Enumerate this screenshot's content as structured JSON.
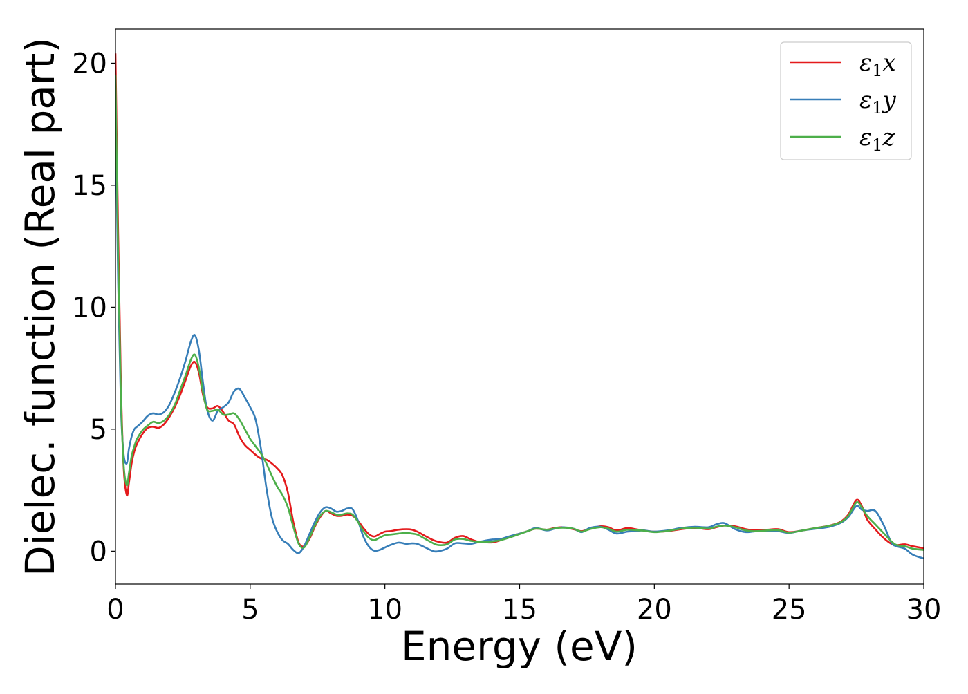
{
  "chart_data": {
    "type": "line",
    "title": "",
    "xlabel": "Energy (eV)",
    "ylabel": "Dielec. function (Real part)",
    "xlim": [
      0,
      30
    ],
    "ylim": [
      -1.35,
      21.4
    ],
    "xticks": [
      0,
      5,
      10,
      15,
      20,
      25,
      30
    ],
    "yticks": [
      0,
      5,
      10,
      15,
      20
    ],
    "grid": false,
    "legend_position": "top-right",
    "series": [
      {
        "name": "ε1x",
        "name_base": "ε",
        "name_sub": "1",
        "name_tail": "x",
        "color": "#e41a1c",
        "x": [
          0,
          0.1,
          0.2,
          0.3,
          0.42,
          0.5,
          0.6,
          0.7,
          0.8,
          1.0,
          1.2,
          1.4,
          1.6,
          1.8,
          2.0,
          2.2,
          2.4,
          2.6,
          2.8,
          2.95,
          3.1,
          3.25,
          3.4,
          3.6,
          3.8,
          4.0,
          4.2,
          4.4,
          4.6,
          4.8,
          5.0,
          5.2,
          5.4,
          5.6,
          5.8,
          6.0,
          6.2,
          6.4,
          6.6,
          6.8,
          7.0,
          7.2,
          7.4,
          7.6,
          7.8,
          8.0,
          8.2,
          8.4,
          8.6,
          8.8,
          9.0,
          9.2,
          9.4,
          9.6,
          9.8,
          10.0,
          10.2,
          10.5,
          10.8,
          11.0,
          11.2,
          11.5,
          11.8,
          12.0,
          12.3,
          12.6,
          12.9,
          13.2,
          13.5,
          13.8,
          14.0,
          14.3,
          14.6,
          15.0,
          15.3,
          15.6,
          16.0,
          16.3,
          16.6,
          17.0,
          17.3,
          17.6,
          18.0,
          18.3,
          18.6,
          19.0,
          19.3,
          19.6,
          20.0,
          20.5,
          21.0,
          21.5,
          22.0,
          22.3,
          22.6,
          23.0,
          23.4,
          23.8,
          24.2,
          24.6,
          25.0,
          25.5,
          26.0,
          26.5,
          26.9,
          27.2,
          27.5,
          27.7,
          27.9,
          28.2,
          28.5,
          28.8,
          29.0,
          29.3,
          29.6,
          30.0
        ],
        "y": [
          20.4,
          13.0,
          7.0,
          3.5,
          2.3,
          2.8,
          3.6,
          4.1,
          4.4,
          4.8,
          5.05,
          5.1,
          5.05,
          5.2,
          5.5,
          5.9,
          6.4,
          7.0,
          7.6,
          7.75,
          7.3,
          6.4,
          5.9,
          5.85,
          5.95,
          5.7,
          5.35,
          5.2,
          4.7,
          4.35,
          4.15,
          3.95,
          3.8,
          3.75,
          3.6,
          3.4,
          3.1,
          2.4,
          1.2,
          0.35,
          0.2,
          0.5,
          1.0,
          1.4,
          1.65,
          1.55,
          1.45,
          1.45,
          1.5,
          1.45,
          1.25,
          0.95,
          0.7,
          0.6,
          0.7,
          0.8,
          0.82,
          0.88,
          0.9,
          0.88,
          0.8,
          0.62,
          0.45,
          0.38,
          0.35,
          0.55,
          0.62,
          0.48,
          0.38,
          0.36,
          0.36,
          0.45,
          0.58,
          0.72,
          0.82,
          0.92,
          0.88,
          0.95,
          0.98,
          0.9,
          0.82,
          0.92,
          1.02,
          0.98,
          0.85,
          0.95,
          0.9,
          0.85,
          0.8,
          0.82,
          0.9,
          0.95,
          0.9,
          0.98,
          1.05,
          1.02,
          0.9,
          0.85,
          0.88,
          0.9,
          0.78,
          0.85,
          0.95,
          1.05,
          1.2,
          1.5,
          2.1,
          1.85,
          1.3,
          0.9,
          0.55,
          0.3,
          0.25,
          0.28,
          0.2,
          0.12
        ]
      },
      {
        "name": "ε1y",
        "name_base": "ε",
        "name_sub": "1",
        "name_tail": "y",
        "color": "#377eb8",
        "x": [
          0,
          0.1,
          0.2,
          0.3,
          0.42,
          0.5,
          0.6,
          0.7,
          0.8,
          1.0,
          1.2,
          1.4,
          1.6,
          1.8,
          2.0,
          2.2,
          2.4,
          2.6,
          2.8,
          2.95,
          3.1,
          3.25,
          3.4,
          3.6,
          3.8,
          4.0,
          4.2,
          4.4,
          4.6,
          4.8,
          5.0,
          5.2,
          5.4,
          5.6,
          5.8,
          6.0,
          6.2,
          6.4,
          6.6,
          6.8,
          7.0,
          7.2,
          7.4,
          7.6,
          7.8,
          8.0,
          8.2,
          8.4,
          8.6,
          8.8,
          9.0,
          9.2,
          9.4,
          9.6,
          9.8,
          10.0,
          10.2,
          10.5,
          10.8,
          11.0,
          11.2,
          11.5,
          11.8,
          12.0,
          12.3,
          12.6,
          12.9,
          13.2,
          13.5,
          13.8,
          14.0,
          14.3,
          14.6,
          15.0,
          15.3,
          15.6,
          16.0,
          16.3,
          16.6,
          17.0,
          17.3,
          17.6,
          18.0,
          18.3,
          18.6,
          19.0,
          19.3,
          19.6,
          20.0,
          20.5,
          21.0,
          21.5,
          22.0,
          22.3,
          22.6,
          23.0,
          23.4,
          23.8,
          24.2,
          24.6,
          25.0,
          25.5,
          26.0,
          26.5,
          26.9,
          27.2,
          27.5,
          27.7,
          27.9,
          28.2,
          28.5,
          28.8,
          29.0,
          29.3,
          29.6,
          30.0
        ],
        "y": [
          18.5,
          11.0,
          6.0,
          4.0,
          3.6,
          4.2,
          4.7,
          5.0,
          5.1,
          5.3,
          5.55,
          5.65,
          5.6,
          5.7,
          6.0,
          6.5,
          7.1,
          7.8,
          8.6,
          8.85,
          8.2,
          6.9,
          5.8,
          5.35,
          5.75,
          5.9,
          6.1,
          6.55,
          6.65,
          6.3,
          5.9,
          5.4,
          4.2,
          2.6,
          1.4,
          0.8,
          0.45,
          0.3,
          0.05,
          -0.08,
          0.2,
          0.7,
          1.2,
          1.6,
          1.8,
          1.75,
          1.62,
          1.65,
          1.75,
          1.72,
          1.25,
          0.6,
          0.2,
          0.02,
          0.05,
          0.15,
          0.25,
          0.35,
          0.3,
          0.32,
          0.3,
          0.15,
          0.0,
          0.0,
          0.1,
          0.32,
          0.32,
          0.3,
          0.38,
          0.45,
          0.48,
          0.5,
          0.6,
          0.72,
          0.82,
          0.95,
          0.85,
          0.92,
          0.98,
          0.92,
          0.78,
          0.95,
          1.0,
          0.88,
          0.72,
          0.8,
          0.82,
          0.85,
          0.8,
          0.85,
          0.95,
          1.0,
          0.98,
          1.1,
          1.15,
          0.9,
          0.78,
          0.82,
          0.82,
          0.82,
          0.75,
          0.85,
          0.92,
          1.0,
          1.15,
          1.4,
          1.85,
          1.7,
          1.65,
          1.65,
          1.1,
          0.35,
          0.2,
          0.1,
          -0.15,
          -0.3
        ]
      },
      {
        "name": "ε1z",
        "name_base": "ε",
        "name_sub": "1",
        "name_tail": "z",
        "color": "#4daf4a",
        "x": [
          0,
          0.1,
          0.2,
          0.3,
          0.42,
          0.5,
          0.6,
          0.7,
          0.8,
          1.0,
          1.2,
          1.4,
          1.6,
          1.8,
          2.0,
          2.2,
          2.4,
          2.6,
          2.8,
          2.95,
          3.1,
          3.25,
          3.4,
          3.6,
          3.8,
          4.0,
          4.2,
          4.4,
          4.6,
          4.8,
          5.0,
          5.2,
          5.4,
          5.6,
          5.8,
          6.0,
          6.2,
          6.4,
          6.6,
          6.8,
          7.0,
          7.2,
          7.4,
          7.6,
          7.8,
          8.0,
          8.2,
          8.4,
          8.6,
          8.8,
          9.0,
          9.2,
          9.4,
          9.6,
          9.8,
          10.0,
          10.2,
          10.5,
          10.8,
          11.0,
          11.2,
          11.5,
          11.8,
          12.0,
          12.3,
          12.6,
          12.9,
          13.2,
          13.5,
          13.8,
          14.0,
          14.3,
          14.6,
          15.0,
          15.3,
          15.6,
          16.0,
          16.3,
          16.6,
          17.0,
          17.3,
          17.6,
          18.0,
          18.3,
          18.6,
          19.0,
          19.3,
          19.6,
          20.0,
          20.5,
          21.0,
          21.5,
          22.0,
          22.3,
          22.6,
          23.0,
          23.4,
          23.8,
          24.2,
          24.6,
          25.0,
          25.5,
          26.0,
          26.5,
          26.9,
          27.2,
          27.5,
          27.7,
          27.9,
          28.2,
          28.5,
          28.8,
          29.0,
          29.3,
          29.6,
          30.0
        ],
        "y": [
          19.5,
          12.0,
          6.5,
          3.6,
          2.7,
          3.2,
          3.9,
          4.3,
          4.6,
          4.95,
          5.15,
          5.3,
          5.25,
          5.35,
          5.6,
          6.0,
          6.6,
          7.2,
          7.85,
          8.05,
          7.5,
          6.5,
          5.8,
          5.75,
          5.8,
          5.6,
          5.6,
          5.65,
          5.4,
          5.0,
          4.6,
          4.3,
          4.0,
          3.6,
          3.1,
          2.65,
          2.3,
          1.8,
          1.0,
          0.3,
          0.15,
          0.55,
          1.05,
          1.45,
          1.65,
          1.6,
          1.5,
          1.5,
          1.55,
          1.5,
          1.2,
          0.82,
          0.55,
          0.45,
          0.55,
          0.65,
          0.68,
          0.72,
          0.75,
          0.72,
          0.68,
          0.5,
          0.32,
          0.25,
          0.28,
          0.48,
          0.5,
          0.42,
          0.38,
          0.38,
          0.4,
          0.45,
          0.55,
          0.7,
          0.82,
          0.92,
          0.88,
          0.93,
          0.96,
          0.92,
          0.8,
          0.9,
          0.98,
          0.92,
          0.8,
          0.88,
          0.86,
          0.84,
          0.78,
          0.83,
          0.92,
          0.96,
          0.92,
          1.0,
          1.05,
          0.98,
          0.85,
          0.82,
          0.85,
          0.86,
          0.76,
          0.85,
          0.95,
          1.04,
          1.18,
          1.45,
          2.0,
          1.8,
          1.45,
          1.1,
          0.75,
          0.4,
          0.25,
          0.2,
          0.1,
          0.05
        ]
      }
    ]
  }
}
